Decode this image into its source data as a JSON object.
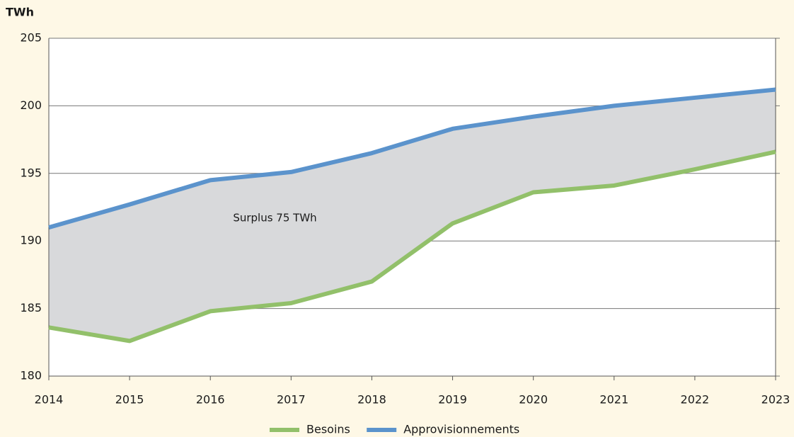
{
  "chart_data": {
    "type": "line",
    "y_label": "TWh",
    "x": [
      2014,
      2015,
      2016,
      2017,
      2018,
      2019,
      2020,
      2021,
      2022,
      2023
    ],
    "xlim": [
      2014,
      2023
    ],
    "xticks": [
      2014,
      2015,
      2016,
      2017,
      2018,
      2019,
      2020,
      2021,
      2022,
      2023
    ],
    "ylim": [
      180,
      205
    ],
    "yticks": [
      180,
      185,
      190,
      195,
      200,
      205
    ],
    "grid": true,
    "fill_between": true,
    "fill_color": "#d8d9db",
    "legend": "bottom",
    "series": [
      {
        "name": "Besoins",
        "color": "#92c06a",
        "values": [
          183.6,
          182.6,
          184.8,
          185.4,
          187.0,
          191.3,
          193.6,
          194.1,
          195.3,
          196.6
        ]
      },
      {
        "name": "Approvisionnements",
        "color": "#5b93cc",
        "values": [
          191.0,
          192.7,
          194.5,
          195.1,
          196.5,
          198.3,
          199.2,
          200.0,
          200.6,
          201.2
        ]
      }
    ],
    "annotations": [
      {
        "text": "Surplus 75 TWh",
        "x": 2016.8,
        "y": 191.7
      }
    ]
  }
}
